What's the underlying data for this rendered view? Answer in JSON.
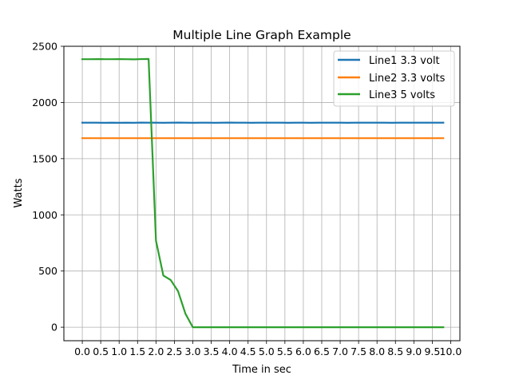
{
  "chart_data": {
    "type": "line",
    "title": "Multiple Line Graph Example",
    "xlabel": "Time in sec",
    "ylabel": "Watts",
    "xlim": [
      -0.5,
      10.25
    ],
    "ylim": [
      -120,
      2500
    ],
    "xticks": [
      0.0,
      0.5,
      1.0,
      1.5,
      2.0,
      2.5,
      3.0,
      3.5,
      4.0,
      4.5,
      5.0,
      5.5,
      6.0,
      6.5,
      7.0,
      7.5,
      8.0,
      8.5,
      9.0,
      9.5,
      10.0
    ],
    "xtick_labels": [
      "0.0",
      "0.5",
      "1.0",
      "1.5",
      "2.0",
      "2.5",
      "3.0",
      "3.5",
      "4.0",
      "4.5",
      "5.0",
      "5.5",
      "6.0",
      "6.5",
      "7.0",
      "7.5",
      "8.0",
      "8.5",
      "9.0",
      "9.5",
      "10.0"
    ],
    "yticks": [
      0,
      500,
      1000,
      1500,
      2000,
      2500
    ],
    "ytick_labels": [
      "0",
      "500",
      "1000",
      "1500",
      "2000",
      "2500"
    ],
    "grid": true,
    "legend_position": "top-right",
    "x": [
      0.0,
      0.2,
      0.4,
      0.6,
      0.8,
      1.0,
      1.2,
      1.4,
      1.6,
      1.8,
      2.0,
      2.2,
      2.4,
      2.6,
      2.8,
      3.0,
      3.2,
      3.4,
      3.6,
      3.8,
      4.0,
      4.2,
      4.4,
      4.6,
      4.8,
      5.0,
      5.2,
      5.4,
      5.6,
      5.8,
      6.0,
      6.2,
      6.4,
      6.6,
      6.8,
      7.0,
      7.2,
      7.4,
      7.6,
      7.8,
      8.0,
      8.2,
      8.4,
      8.6,
      8.8,
      9.0,
      9.2,
      9.4,
      9.6,
      9.8
    ],
    "series": [
      {
        "name": "Line1 3.3 volt",
        "color": "#1f77b4",
        "values": [
          1820,
          1820,
          1820,
          1819,
          1820,
          1819,
          1820,
          1819,
          1821,
          1820,
          1820,
          1819,
          1820,
          1821,
          1820,
          1819,
          1820,
          1820,
          1819,
          1820,
          1821,
          1820,
          1820,
          1819,
          1820,
          1820,
          1820,
          1820,
          1819,
          1820,
          1820,
          1819,
          1820,
          1820,
          1820,
          1820,
          1819,
          1820,
          1820,
          1820,
          1820,
          1820,
          1819,
          1820,
          1820,
          1820,
          1820,
          1820,
          1820,
          1820
        ]
      },
      {
        "name": "Line2 3.3 volts",
        "color": "#ff7f0e",
        "values": [
          1682,
          1682,
          1682,
          1682,
          1682,
          1682,
          1682,
          1682,
          1682,
          1682,
          1682,
          1682,
          1682,
          1682,
          1682,
          1682,
          1682,
          1682,
          1682,
          1682,
          1682,
          1682,
          1682,
          1682,
          1682,
          1682,
          1682,
          1682,
          1682,
          1682,
          1682,
          1682,
          1682,
          1682,
          1682,
          1682,
          1682,
          1682,
          1682,
          1682,
          1682,
          1682,
          1682,
          1682,
          1682,
          1682,
          1682,
          1682,
          1682,
          1682
        ]
      },
      {
        "name": "Line3 5 volts",
        "color": "#2ca02c",
        "values": [
          2385,
          2385,
          2386,
          2385,
          2385,
          2386,
          2385,
          2384,
          2386,
          2387,
          770,
          460,
          420,
          320,
          120,
          0,
          0,
          0,
          0,
          0,
          0,
          0,
          0,
          0,
          0,
          0,
          0,
          0,
          0,
          0,
          0,
          0,
          0,
          0,
          0,
          0,
          0,
          0,
          0,
          0,
          0,
          0,
          0,
          0,
          0,
          0,
          0,
          0,
          0,
          0
        ]
      }
    ]
  }
}
